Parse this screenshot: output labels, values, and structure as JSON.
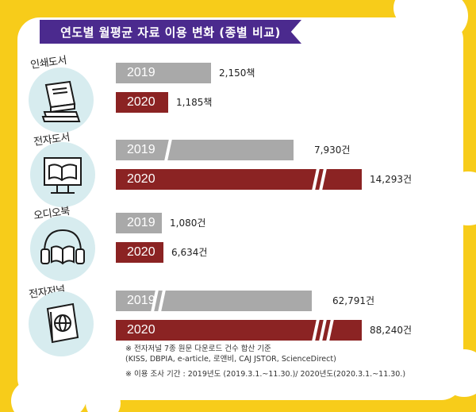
{
  "title": "연도별 월평균 자료 이용 변화 (종별 비교)",
  "colors": {
    "bg_yellow": "#f7cc1a",
    "purple": "#4b2a8e",
    "gray_bar": "#a9a9a9",
    "red_bar": "#8b2323"
  },
  "chart_data": {
    "type": "bar",
    "orientation": "horizontal",
    "title": "연도별 월평균 자료 이용 변화 (종별 비교)",
    "categories": [
      "인쇄도서",
      "전자도서",
      "오디오북",
      "전자저널"
    ],
    "series": [
      {
        "name": "2019",
        "color": "#a9a9a9",
        "values": [
          2150,
          7930,
          1080,
          62791
        ],
        "value_labels": [
          "2,150책",
          "7,930건",
          "1,080건",
          "62,791건"
        ]
      },
      {
        "name": "2020",
        "color": "#8b2323",
        "values": [
          1185,
          14293,
          6634,
          88240
        ],
        "value_labels": [
          "1,185책",
          "14,293건",
          "6,634건",
          "88,240건"
        ]
      }
    ],
    "axis_breaks": [
      false,
      true,
      false,
      true
    ],
    "grid": false,
    "legend": "none"
  },
  "icons": [
    "book-stack-icon",
    "ebook-monitor-icon",
    "headphones-book-icon",
    "journal-globe-icon"
  ],
  "notes": {
    "line1": "※ 전자저널 7종 원문 다운로드 건수 합산 기준",
    "line2": "(KISS, DBPIA, e-article, 로앤비, CAJ JSTOR, ScienceDirect)",
    "line3": "※ 이용 조사 기간 : 2019년도 (2019.3.1.~11.30.)/ 2020년도(2020.3.1.~11.30.)"
  }
}
